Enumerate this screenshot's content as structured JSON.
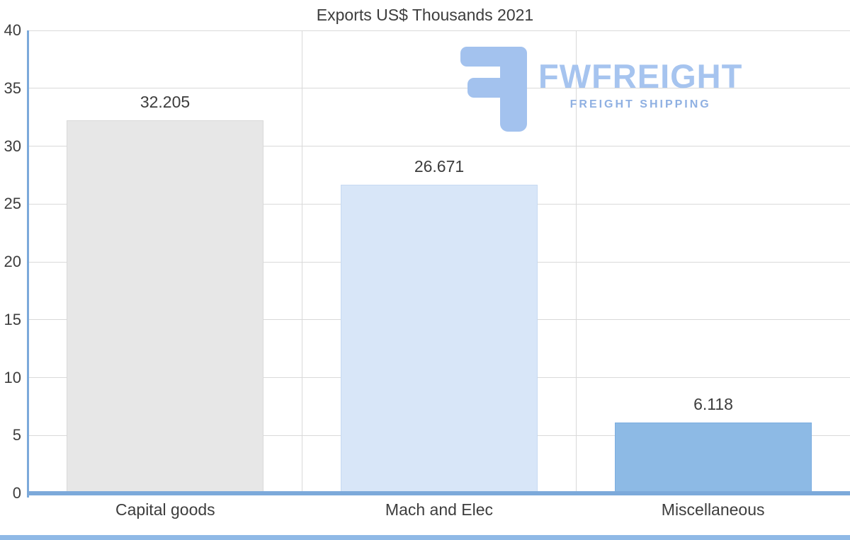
{
  "title": "Exports US$ Thousands 2021",
  "watermark": {
    "brand": "FWFREIGHT",
    "tagline": "FREIGHT SHIPPING",
    "logo_icon": "stylized-f-icon",
    "color": "#a6c4ef"
  },
  "chart_data": {
    "type": "bar",
    "title": "Exports US$ Thousands 2021",
    "categories": [
      "Capital goods",
      "Mach and Elec",
      "Miscellaneous"
    ],
    "values": [
      32.205,
      26.671,
      6.118
    ],
    "value_labels": [
      "32.205",
      "26.671",
      "6.118"
    ],
    "bar_colors": [
      "#e7e7e7",
      "#d8e6f8",
      "#8dbae5"
    ],
    "bar_border_colors": [
      "#d9d9d9",
      "#c7daf2",
      "#7cade0"
    ],
    "xlabel": "",
    "ylabel": "",
    "ylim": [
      0,
      40
    ],
    "yticks": [
      0,
      5,
      10,
      15,
      20,
      25,
      30,
      35,
      40
    ],
    "grid": true,
    "gridline_color": "#d9d9d9",
    "axis_color": "#7ca9da",
    "legend": "none",
    "text_color": "#3d3d3d"
  }
}
